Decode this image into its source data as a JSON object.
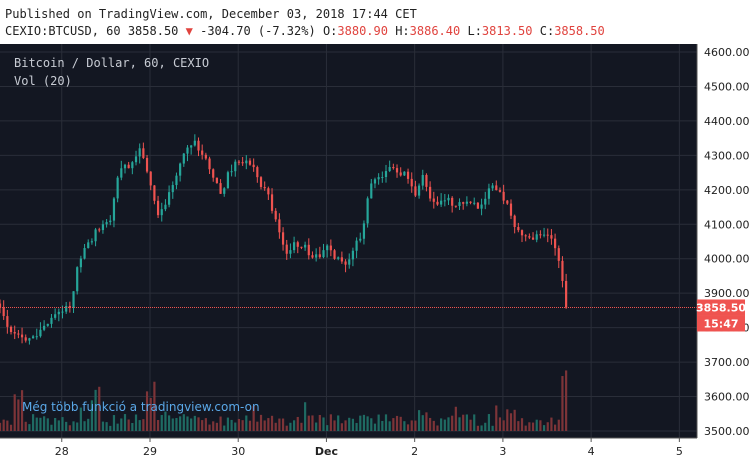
{
  "header": {
    "published": "Published on TradingView.com, December 03, 2018 17:44 CET",
    "symbol": "CEXIO:BTCUSD, 60",
    "last": "3858.50",
    "change": "-304.70 (-7.32%)",
    "o_label": "O:",
    "o_value": "3880.90",
    "h_label": "H:",
    "h_value": "3886.40",
    "l_label": "L:",
    "l_value": "3813.50",
    "c_label": "C:",
    "c_value": "3858.50"
  },
  "legend": {
    "title": "Bitcoin / Dollar, 60, CEXIO",
    "volume": "Vol (20)"
  },
  "watermark": "Még több funkció a tradingview.com-on",
  "price_badge": {
    "price": "3858.50",
    "countdown": "15:47"
  },
  "colors": {
    "up": "#26a69a",
    "down": "#ef5350",
    "background": "#131722",
    "grid": "#2a2e39",
    "volume_up": "#1f6b63",
    "volume_down": "#7d3438"
  },
  "chart_data": {
    "type": "candlestick",
    "title": "Bitcoin / Dollar, 60, CEXIO",
    "ylim": [
      3480,
      4620
    ],
    "y_ticks": [
      3500,
      3600,
      3700,
      3800,
      3900,
      4000,
      4100,
      4200,
      4300,
      4400,
      4500,
      4600
    ],
    "x_ticks": [
      {
        "label": "28",
        "value": 0
      },
      {
        "label": "29",
        "value": 1
      },
      {
        "label": "30",
        "value": 2
      },
      {
        "label": "Dec",
        "value": 3
      },
      {
        "label": "2",
        "value": 4
      },
      {
        "label": "3",
        "value": 5
      },
      {
        "label": "4",
        "value": 6
      },
      {
        "label": "5",
        "value": 7
      }
    ],
    "xlim": [
      -0.7,
      7.2
    ],
    "anchors": [
      [
        -0.7,
        3870
      ],
      [
        -0.6,
        3800
      ],
      [
        -0.45,
        3760
      ],
      [
        -0.25,
        3790
      ],
      [
        -0.1,
        3840
      ],
      [
        0.1,
        3860
      ],
      [
        0.2,
        4000
      ],
      [
        0.4,
        4080
      ],
      [
        0.55,
        4120
      ],
      [
        0.65,
        4250
      ],
      [
        0.8,
        4280
      ],
      [
        0.9,
        4330
      ],
      [
        1.0,
        4220
      ],
      [
        1.1,
        4130
      ],
      [
        1.2,
        4180
      ],
      [
        1.3,
        4240
      ],
      [
        1.4,
        4320
      ],
      [
        1.5,
        4340
      ],
      [
        1.6,
        4300
      ],
      [
        1.7,
        4250
      ],
      [
        1.8,
        4180
      ],
      [
        1.9,
        4260
      ],
      [
        2.1,
        4290
      ],
      [
        2.25,
        4220
      ],
      [
        2.35,
        4180
      ],
      [
        2.45,
        4080
      ],
      [
        2.55,
        4020
      ],
      [
        2.7,
        4050
      ],
      [
        2.85,
        4000
      ],
      [
        3.0,
        4030
      ],
      [
        3.1,
        4000
      ],
      [
        3.25,
        3990
      ],
      [
        3.4,
        4080
      ],
      [
        3.5,
        4210
      ],
      [
        3.6,
        4240
      ],
      [
        3.75,
        4270
      ],
      [
        3.9,
        4240
      ],
      [
        4.0,
        4180
      ],
      [
        4.1,
        4240
      ],
      [
        4.2,
        4150
      ],
      [
        4.3,
        4170
      ],
      [
        4.5,
        4160
      ],
      [
        4.65,
        4150
      ],
      [
        4.75,
        4160
      ],
      [
        4.9,
        4220
      ],
      [
        5.05,
        4160
      ],
      [
        5.15,
        4080
      ],
      [
        5.3,
        4060
      ],
      [
        5.45,
        4080
      ],
      [
        5.55,
        4060
      ],
      [
        5.62,
        4020
      ],
      [
        5.7,
        3890
      ],
      [
        5.75,
        3860
      ]
    ],
    "volume_spikes": [
      [
        -0.5,
        0.45
      ],
      [
        0.4,
        0.45
      ],
      [
        1.0,
        0.5
      ],
      [
        3.8,
        0.2
      ],
      [
        5.1,
        0.25
      ],
      [
        5.72,
        0.75
      ],
      [
        5.74,
        0.2
      ]
    ],
    "last_price": 3858.5
  }
}
